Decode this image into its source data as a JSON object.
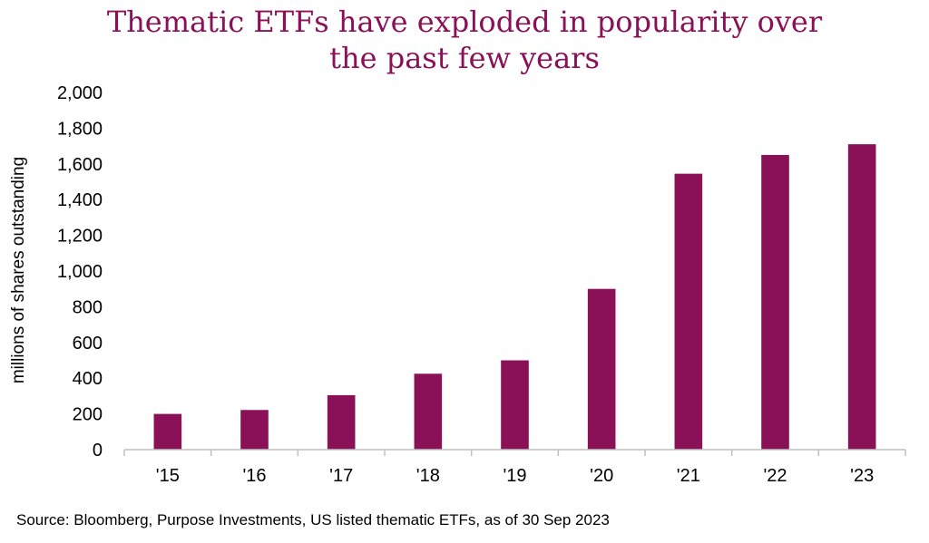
{
  "chart_data": {
    "type": "bar",
    "title_lines": [
      "Thematic ETFs have exploded in popularity over",
      "the past few years"
    ],
    "categories": [
      "'15",
      "'16",
      "'17",
      "'18",
      "'19",
      "'20",
      "'21",
      "'22",
      "'23"
    ],
    "values": [
      200,
      222,
      305,
      425,
      500,
      900,
      1545,
      1650,
      1710
    ],
    "ylabel": "millions of shares outstanding",
    "xlabel": "",
    "ylim": [
      0,
      2000
    ],
    "yticks": [
      0,
      200,
      400,
      600,
      800,
      1000,
      1200,
      1400,
      1600,
      1800,
      2000
    ],
    "ytick_labels": [
      "0",
      "200",
      "400",
      "600",
      "800",
      "1,000",
      "1,200",
      "1,400",
      "1,600",
      "1,800",
      "2,000"
    ],
    "grid": false,
    "bar_color": "#8a1058",
    "title_color": "#8a1058"
  },
  "source": "Source: Bloomberg, Purpose Investments, US listed thematic ETFs, as of 30 Sep 2023"
}
